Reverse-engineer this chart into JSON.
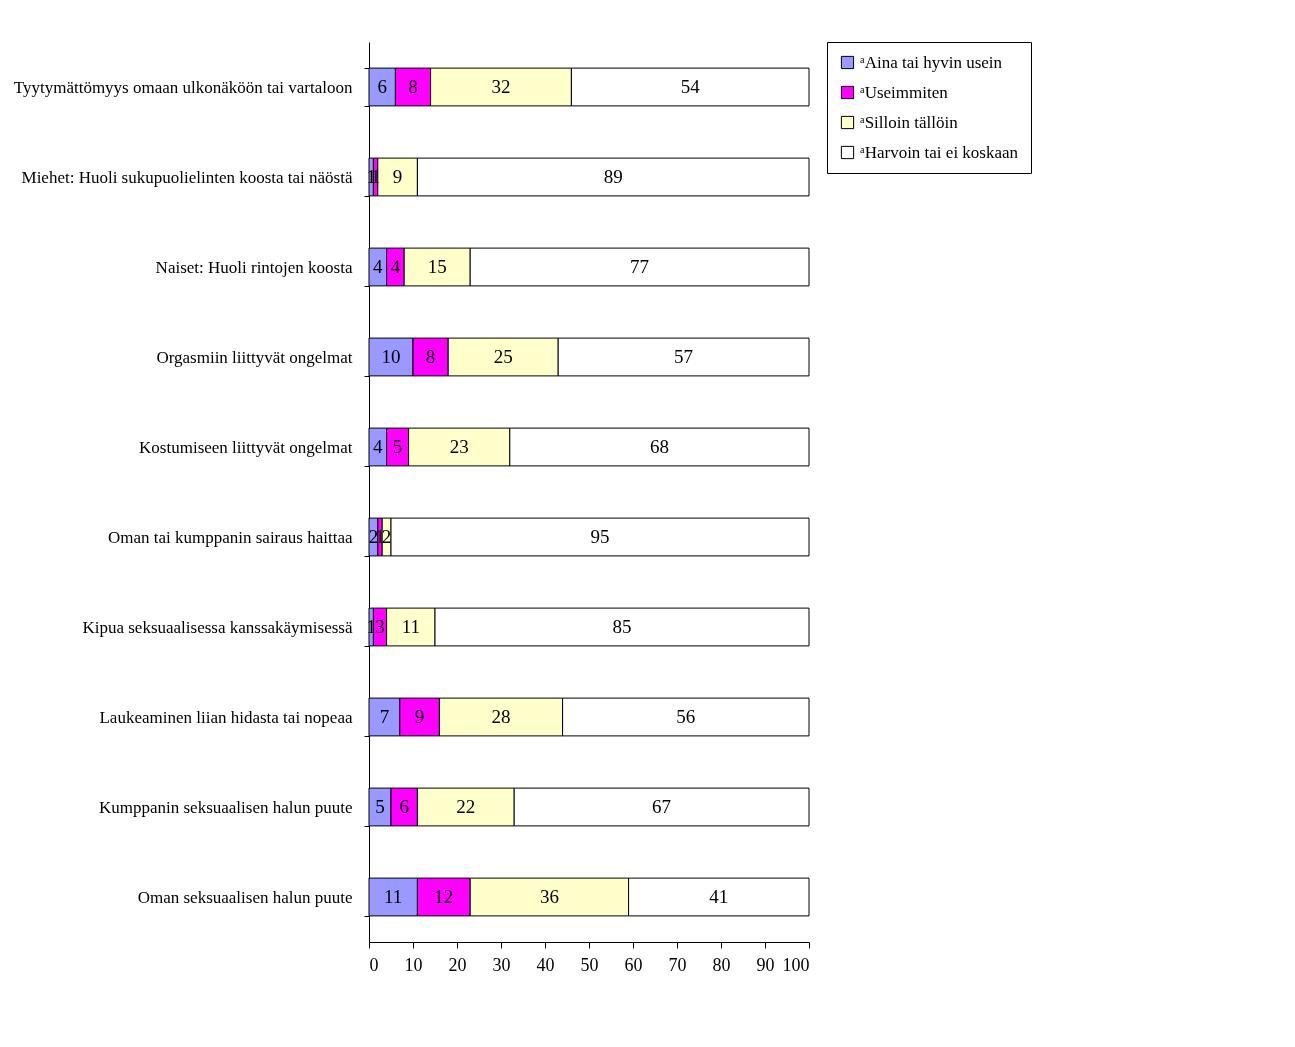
{
  "chart_data": {
    "type": "bar",
    "orientation": "horizontal",
    "stacked": true,
    "data_labels": true,
    "categories": [
      "Tyytymättömyys omaan ulkonäköön tai vartaloon",
      "Miehet: Huoli sukupuolielinten koosta tai näöstä",
      "Naiset: Huoli rintojen koosta",
      "Orgasmiin liittyvät ongelmat",
      "Kostumiseen liittyvät ongelmat",
      "Oman tai kumppanin sairaus haittaa",
      "Kipua seksuaalisessa kanssakäymisessä",
      "Laukeaminen liian hidasta tai nopeaa",
      "Kumppanin seksuaalisen halun puute",
      "Oman seksuaalisen halun puute"
    ],
    "series": [
      {
        "name": "ᵃAina tai hyvin usein",
        "color": "#9999ff",
        "values": [
          6,
          1,
          4,
          10,
          4,
          2,
          1,
          7,
          5,
          11
        ]
      },
      {
        "name": "ᵃUseimmiten",
        "color": "#ff00ff",
        "values": [
          8,
          1,
          4,
          8,
          5,
          1,
          3,
          9,
          6,
          12
        ]
      },
      {
        "name": "ᵃSilloin tällöin",
        "color": "#ffffcc",
        "values": [
          32,
          9,
          15,
          25,
          23,
          2,
          11,
          28,
          22,
          36
        ]
      },
      {
        "name": "ᵃHarvoin tai ei koskaan",
        "color": "#ffffff",
        "values": [
          54,
          89,
          77,
          57,
          68,
          95,
          85,
          56,
          67,
          41
        ]
      }
    ],
    "xlim": [
      0,
      100
    ],
    "xticks": [
      0,
      10,
      20,
      30,
      40,
      50,
      60,
      70,
      80,
      90,
      100
    ],
    "grid": false,
    "legend": "right"
  }
}
